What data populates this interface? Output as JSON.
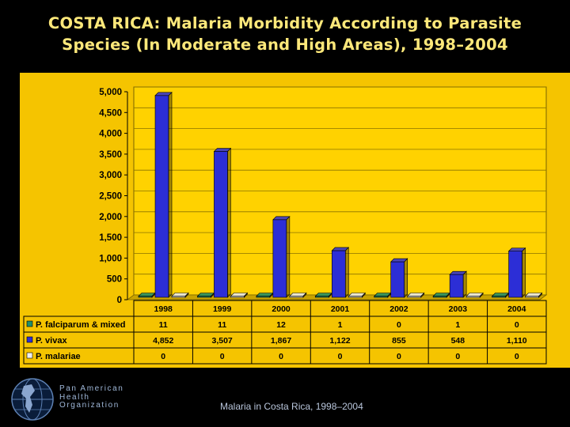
{
  "title": {
    "line1": "COSTA RICA: Malaria Morbidity According to Parasite",
    "line2": "Species (In Moderate and High Areas), 1998–2004"
  },
  "footer": {
    "org_line1": "Pan American",
    "org_line2": "Health",
    "org_line3": "Organization",
    "note": "Malaria in Costa Rica, 1998–2004"
  },
  "colors": {
    "background": "#000000",
    "panel": "#f5c400",
    "title": "#fde87a",
    "vivax": "#2c2ed6",
    "falciparum": "#1f8f6a",
    "malariae": "#f0f0f0"
  },
  "chart_data": {
    "type": "bar",
    "title": "COSTA RICA: Malaria Morbidity According to Parasite Species (In Moderate and High Areas), 1998–2004",
    "categories": [
      "1998",
      "1999",
      "2000",
      "2001",
      "2002",
      "2003",
      "2004"
    ],
    "series": [
      {
        "name": "P. falciparum & mixed",
        "values": [
          11,
          11,
          12,
          1,
          0,
          1,
          0
        ],
        "labels": [
          "11",
          "11",
          "12",
          "1",
          "0",
          "1",
          "0"
        ],
        "color": "#1f8f6a"
      },
      {
        "name": "P. vivax",
        "values": [
          4852,
          3507,
          1867,
          1122,
          855,
          548,
          1110
        ],
        "labels": [
          "4,852",
          "3,507",
          "1,867",
          "1,122",
          "855",
          "548",
          "1,110"
        ],
        "color": "#2c2ed6"
      },
      {
        "name": "P. malariae",
        "values": [
          0,
          0,
          0,
          0,
          0,
          0,
          0
        ],
        "labels": [
          "0",
          "0",
          "0",
          "0",
          "0",
          "0",
          "0"
        ],
        "color": "#f0f0f0"
      }
    ],
    "y_ticks": [
      0,
      500,
      1000,
      1500,
      2000,
      2500,
      3000,
      3500,
      4000,
      4500,
      5000
    ],
    "y_tick_labels": [
      "0",
      "500",
      "1,000",
      "1,500",
      "2,000",
      "2,500",
      "3,000",
      "3,500",
      "4,000",
      "4,500",
      "5,000"
    ],
    "ylim": [
      0,
      5000
    ],
    "grid": true,
    "legend": "data-table-below",
    "xlabel": "",
    "ylabel": ""
  }
}
